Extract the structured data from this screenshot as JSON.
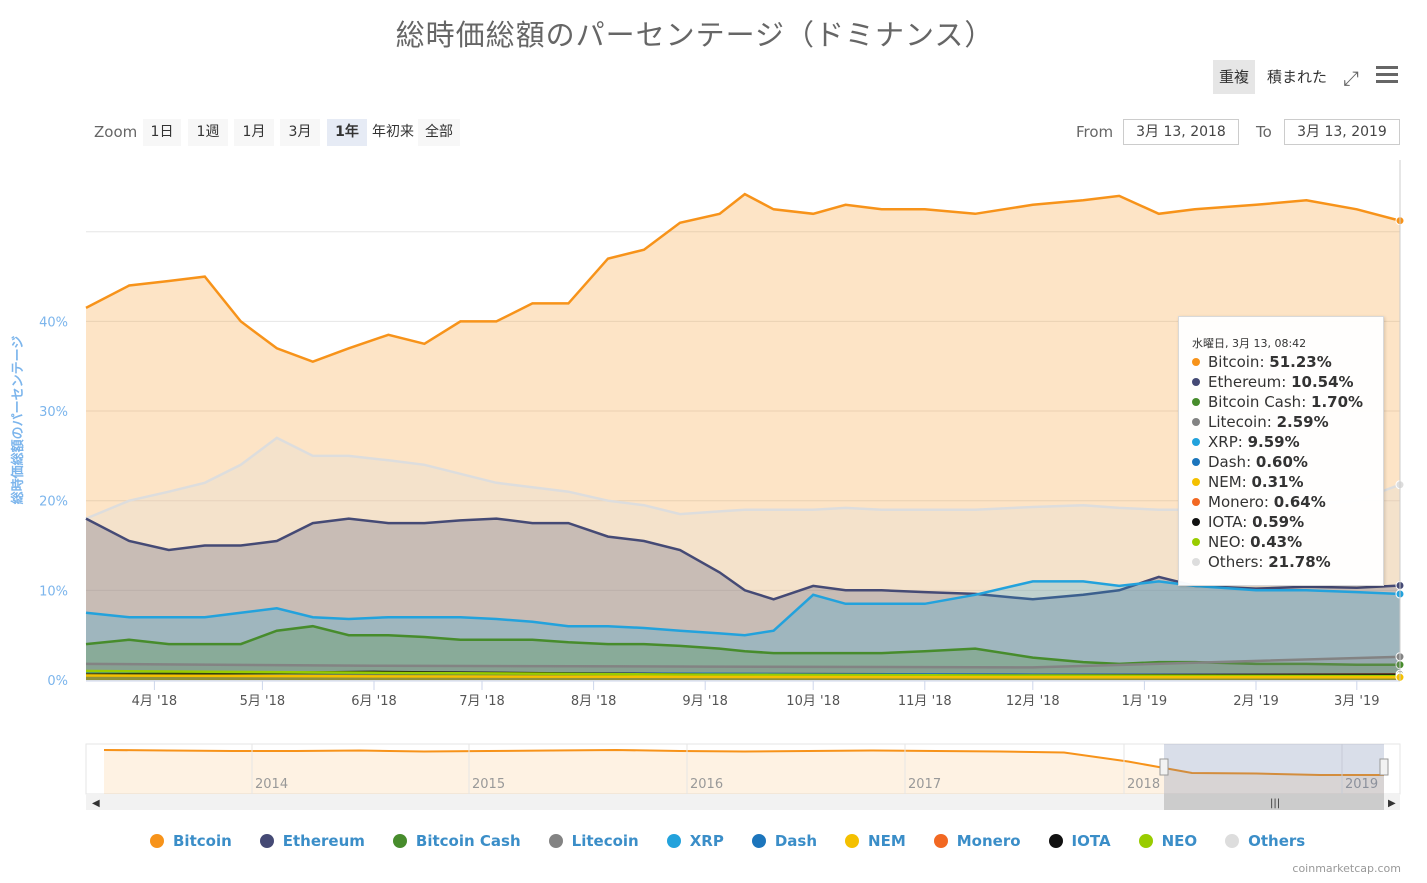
{
  "title": "総時価総額のパーセンテージ（ドミナンス）",
  "toolbar": {
    "overlap": "重複",
    "stacked": "積まれた",
    "expand_icon": "expand-icon",
    "menu_icon": "menu-icon"
  },
  "zoom": {
    "label": "Zoom",
    "buttons": [
      "1日",
      "1週",
      "1月",
      "3月",
      "1年",
      "年初来",
      "全部"
    ],
    "selected": "1年"
  },
  "range": {
    "from_label": "From",
    "from_value": "3月 13, 2018",
    "to_label": "To",
    "to_value": "3月 13, 2019"
  },
  "credit": "coinmarketcap.com",
  "tooltip": {
    "header": "水曜日, 3月 13, 08:42",
    "rows": [
      {
        "name": "Bitcoin",
        "value": "51.23%",
        "color": "#f7931a"
      },
      {
        "name": "Ethereum",
        "value": "10.54%",
        "color": "#454a75"
      },
      {
        "name": "Bitcoin Cash",
        "value": "1.70%",
        "color": "#478c2c"
      },
      {
        "name": "Litecoin",
        "value": "2.59%",
        "color": "#838383"
      },
      {
        "name": "XRP",
        "value": "9.59%",
        "color": "#23a2dc"
      },
      {
        "name": "Dash",
        "value": "0.60%",
        "color": "#1c75bc"
      },
      {
        "name": "NEM",
        "value": "0.31%",
        "color": "#f4c000"
      },
      {
        "name": "Monero",
        "value": "0.64%",
        "color": "#f26822"
      },
      {
        "name": "IOTA",
        "value": "0.59%",
        "color": "#111111"
      },
      {
        "name": "NEO",
        "value": "0.43%",
        "color": "#99cc00"
      },
      {
        "name": "Others",
        "value": "21.78%",
        "color": "#dddddd"
      }
    ]
  },
  "chart_data": {
    "type": "area",
    "title": "総時価総額のパーセンテージ（ドミナンス）",
    "ylabel": "総時価総額のパーセンテージ",
    "ylim": [
      0,
      58
    ],
    "yticks": [
      0,
      10,
      20,
      30,
      40
    ],
    "ytick_labels": [
      "0%",
      "10%",
      "20%",
      "30%",
      "40%"
    ],
    "x_range": [
      "2018-03-13",
      "2019-03-13"
    ],
    "x_ticks": [
      "2018-04-01",
      "2018-05-01",
      "2018-06-01",
      "2018-07-01",
      "2018-08-01",
      "2018-09-01",
      "2018-10-01",
      "2018-11-01",
      "2018-12-01",
      "2019-01-01",
      "2019-02-01",
      "2019-03-01"
    ],
    "x_tick_labels": [
      "4月 '18",
      "5月 '18",
      "6月 '18",
      "7月 '18",
      "8月 '18",
      "9月 '18",
      "10月 '18",
      "11月 '18",
      "12月 '18",
      "1月 '19",
      "2月 '19",
      "3月 '19"
    ],
    "grid": true,
    "legend_position": "bottom",
    "series": [
      {
        "name": "Bitcoin",
        "color": "#f7931a",
        "x": [
          "2018-03-13",
          "2018-03-25",
          "2018-04-05",
          "2018-04-15",
          "2018-04-25",
          "2018-05-05",
          "2018-05-15",
          "2018-05-25",
          "2018-06-05",
          "2018-06-15",
          "2018-06-25",
          "2018-07-05",
          "2018-07-15",
          "2018-07-25",
          "2018-08-05",
          "2018-08-15",
          "2018-08-25",
          "2018-09-05",
          "2018-09-12",
          "2018-09-20",
          "2018-10-01",
          "2018-10-10",
          "2018-10-20",
          "2018-11-01",
          "2018-11-15",
          "2018-12-01",
          "2018-12-15",
          "2018-12-25",
          "2019-01-05",
          "2019-01-15",
          "2019-02-01",
          "2019-02-15",
          "2019-03-01",
          "2019-03-13"
        ],
        "y": [
          41.5,
          44,
          44.5,
          45,
          40,
          37,
          35.5,
          37,
          38.5,
          37.5,
          40,
          40,
          42,
          42,
          47,
          48,
          51,
          52,
          54.2,
          52.5,
          52,
          53,
          52.5,
          52.5,
          52,
          53,
          53.5,
          54,
          52,
          52.5,
          53,
          53.5,
          52.5,
          51.23
        ]
      },
      {
        "name": "Ethereum",
        "color": "#454a75",
        "x": [
          "2018-03-13",
          "2018-03-25",
          "2018-04-05",
          "2018-04-15",
          "2018-04-25",
          "2018-05-05",
          "2018-05-15",
          "2018-05-25",
          "2018-06-05",
          "2018-06-15",
          "2018-06-25",
          "2018-07-05",
          "2018-07-15",
          "2018-07-25",
          "2018-08-05",
          "2018-08-15",
          "2018-08-25",
          "2018-09-05",
          "2018-09-12",
          "2018-09-20",
          "2018-10-01",
          "2018-10-10",
          "2018-10-20",
          "2018-11-01",
          "2018-11-15",
          "2018-12-01",
          "2018-12-15",
          "2018-12-25",
          "2019-01-05",
          "2019-01-15",
          "2019-02-01",
          "2019-02-15",
          "2019-03-01",
          "2019-03-13"
        ],
        "y": [
          18,
          15.5,
          14.5,
          15,
          15,
          15.5,
          17.5,
          18,
          17.5,
          17.5,
          17.8,
          18,
          17.5,
          17.5,
          16,
          15.5,
          14.5,
          12,
          10,
          9,
          10.5,
          10,
          10,
          9.8,
          9.6,
          9,
          9.5,
          10,
          11.5,
          10.5,
          10.2,
          10.4,
          10.3,
          10.54
        ]
      },
      {
        "name": "Others",
        "color": "#dddddd",
        "x": [
          "2018-03-13",
          "2018-03-25",
          "2018-04-05",
          "2018-04-15",
          "2018-04-25",
          "2018-05-05",
          "2018-05-15",
          "2018-05-25",
          "2018-06-05",
          "2018-06-15",
          "2018-06-25",
          "2018-07-05",
          "2018-07-15",
          "2018-07-25",
          "2018-08-05",
          "2018-08-15",
          "2018-08-25",
          "2018-09-05",
          "2018-09-12",
          "2018-09-20",
          "2018-10-01",
          "2018-10-10",
          "2018-10-20",
          "2018-11-01",
          "2018-11-15",
          "2018-12-01",
          "2018-12-15",
          "2018-12-25",
          "2019-01-05",
          "2019-01-15",
          "2019-02-01",
          "2019-02-15",
          "2019-03-01",
          "2019-03-13"
        ],
        "y": [
          18,
          20,
          21,
          22,
          24,
          27,
          25,
          25,
          24.5,
          24,
          23,
          22,
          21.5,
          21,
          20,
          19.5,
          18.5,
          18.8,
          19,
          19,
          19,
          19.2,
          19,
          19,
          19,
          19.3,
          19.5,
          19.2,
          19,
          19,
          19.2,
          19.6,
          20,
          21.78
        ]
      },
      {
        "name": "XRP",
        "color": "#23a2dc",
        "x": [
          "2018-03-13",
          "2018-03-25",
          "2018-04-05",
          "2018-04-15",
          "2018-04-25",
          "2018-05-05",
          "2018-05-15",
          "2018-05-25",
          "2018-06-05",
          "2018-06-15",
          "2018-06-25",
          "2018-07-05",
          "2018-07-15",
          "2018-07-25",
          "2018-08-05",
          "2018-08-15",
          "2018-08-25",
          "2018-09-05",
          "2018-09-12",
          "2018-09-20",
          "2018-10-01",
          "2018-10-10",
          "2018-10-20",
          "2018-11-01",
          "2018-11-15",
          "2018-12-01",
          "2018-12-15",
          "2018-12-25",
          "2019-01-05",
          "2019-01-15",
          "2019-02-01",
          "2019-02-15",
          "2019-03-01",
          "2019-03-13"
        ],
        "y": [
          7.5,
          7,
          7,
          7,
          7.5,
          8,
          7,
          6.8,
          7,
          7,
          7,
          6.8,
          6.5,
          6,
          6,
          5.8,
          5.5,
          5.2,
          5,
          5.5,
          9.5,
          8.5,
          8.5,
          8.5,
          9.5,
          11,
          11,
          10.5,
          11,
          10.5,
          10,
          10,
          9.8,
          9.59
        ]
      },
      {
        "name": "Bitcoin Cash",
        "color": "#478c2c",
        "x": [
          "2018-03-13",
          "2018-03-25",
          "2018-04-05",
          "2018-04-15",
          "2018-04-25",
          "2018-05-05",
          "2018-05-15",
          "2018-05-25",
          "2018-06-05",
          "2018-06-15",
          "2018-06-25",
          "2018-07-05",
          "2018-07-15",
          "2018-07-25",
          "2018-08-05",
          "2018-08-15",
          "2018-08-25",
          "2018-09-05",
          "2018-09-12",
          "2018-09-20",
          "2018-10-01",
          "2018-10-10",
          "2018-10-20",
          "2018-11-01",
          "2018-11-15",
          "2018-12-01",
          "2018-12-15",
          "2018-12-25",
          "2019-01-05",
          "2019-01-15",
          "2019-02-01",
          "2019-02-15",
          "2019-03-01",
          "2019-03-13"
        ],
        "y": [
          4,
          4.5,
          4,
          4,
          4,
          5.5,
          6,
          5,
          5,
          4.8,
          4.5,
          4.5,
          4.5,
          4.2,
          4,
          4,
          3.8,
          3.5,
          3.2,
          3,
          3,
          3,
          3,
          3.2,
          3.5,
          2.5,
          2,
          1.8,
          2,
          2,
          1.8,
          1.8,
          1.7,
          1.7
        ]
      },
      {
        "name": "Litecoin",
        "color": "#838383",
        "x": [
          "2018-03-13",
          "2018-06-01",
          "2018-09-01",
          "2018-12-01",
          "2019-03-13"
        ],
        "y": [
          1.8,
          1.6,
          1.5,
          1.4,
          2.59
        ]
      },
      {
        "name": "Monero",
        "color": "#f26822",
        "x": [
          "2018-03-13",
          "2018-06-01",
          "2018-09-01",
          "2018-12-01",
          "2019-03-13"
        ],
        "y": [
          0.8,
          0.8,
          0.7,
          0.6,
          0.64
        ]
      },
      {
        "name": "Dash",
        "color": "#1c75bc",
        "x": [
          "2018-03-13",
          "2018-06-01",
          "2018-09-01",
          "2018-12-01",
          "2019-03-13"
        ],
        "y": [
          0.9,
          0.8,
          0.7,
          0.6,
          0.6
        ]
      },
      {
        "name": "IOTA",
        "color": "#111111",
        "x": [
          "2018-03-13",
          "2018-06-01",
          "2018-09-01",
          "2018-12-01",
          "2019-03-13"
        ],
        "y": [
          0.6,
          0.9,
          0.6,
          0.5,
          0.59
        ]
      },
      {
        "name": "NEO",
        "color": "#99cc00",
        "x": [
          "2018-03-13",
          "2018-06-01",
          "2018-09-01",
          "2018-12-01",
          "2019-03-13"
        ],
        "y": [
          1,
          0.8,
          0.6,
          0.5,
          0.43
        ]
      },
      {
        "name": "NEM",
        "color": "#f4c000",
        "x": [
          "2018-03-13",
          "2018-06-01",
          "2018-09-01",
          "2018-12-01",
          "2019-03-13"
        ],
        "y": [
          0.5,
          0.4,
          0.35,
          0.3,
          0.31
        ]
      }
    ],
    "navigator": {
      "tick_labels": [
        "2014",
        "2015",
        "2016",
        "2017",
        "2018",
        "2019"
      ],
      "bitcoin_y": [
        88,
        87,
        86,
        86,
        87,
        85,
        86,
        87,
        88,
        86,
        85,
        86,
        87,
        86,
        85,
        83,
        65,
        42,
        41,
        38,
        38
      ]
    }
  }
}
